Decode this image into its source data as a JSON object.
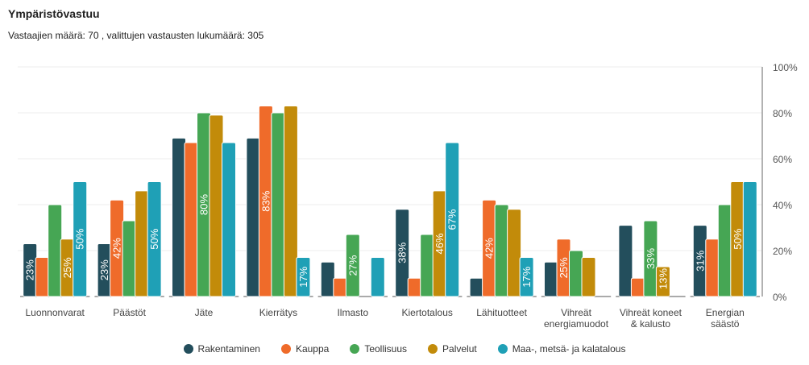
{
  "chart_data": {
    "type": "bar",
    "title": "Ympäristövastuu",
    "subtitle": "Vastaajien määrä: 70 , valittujen vastausten lukumäärä: 305",
    "categories": [
      [
        "Luonnonvarat"
      ],
      [
        "Päästöt"
      ],
      [
        "Jäte"
      ],
      [
        "Kierrätys"
      ],
      [
        "Ilmasto"
      ],
      [
        "Kiertotalous"
      ],
      [
        "Lähituotteet"
      ],
      [
        "Vihreät",
        "energiamuodot"
      ],
      [
        "Vihreät koneet",
        "& kalusto"
      ],
      [
        "Energian",
        "säästö"
      ]
    ],
    "yticks": [
      "0%",
      "20%",
      "40%",
      "60%",
      "80%",
      "100%"
    ],
    "ylim": [
      0,
      100
    ],
    "legend_position": "bottom",
    "series": [
      {
        "name": "Rakentaminen",
        "color": "#234e5c",
        "values": [
          23,
          23,
          69,
          69,
          15,
          38,
          8,
          15,
          31,
          31
        ],
        "labels": [
          "23%",
          "23%",
          null,
          null,
          null,
          "38%",
          null,
          null,
          null,
          "31%"
        ]
      },
      {
        "name": "Kauppa",
        "color": "#ef6b2a",
        "values": [
          17,
          42,
          67,
          83,
          8,
          8,
          42,
          25,
          8,
          25
        ],
        "labels": [
          null,
          "42%",
          null,
          "83%",
          null,
          null,
          "42%",
          "25%",
          null,
          null
        ]
      },
      {
        "name": "Teollisuus",
        "color": "#46a654",
        "values": [
          40,
          33,
          80,
          80,
          27,
          27,
          40,
          20,
          33,
          40
        ],
        "labels": [
          null,
          null,
          "80%",
          null,
          "27%",
          null,
          null,
          null,
          "33%",
          null
        ]
      },
      {
        "name": "Palvelut",
        "color": "#c28b0a",
        "values": [
          25,
          46,
          79,
          83,
          0,
          46,
          38,
          17,
          13,
          50
        ],
        "labels": [
          "25%",
          null,
          null,
          null,
          null,
          "46%",
          null,
          null,
          "13%",
          "50%"
        ]
      },
      {
        "name": "Maa-, metsä- ja kalatalous",
        "color": "#1fa0b6",
        "values": [
          50,
          50,
          67,
          17,
          17,
          67,
          17,
          0,
          0,
          50
        ],
        "labels": [
          "50%",
          "50%",
          null,
          "17%",
          null,
          "67%",
          "17%",
          null,
          null,
          null
        ]
      }
    ]
  }
}
